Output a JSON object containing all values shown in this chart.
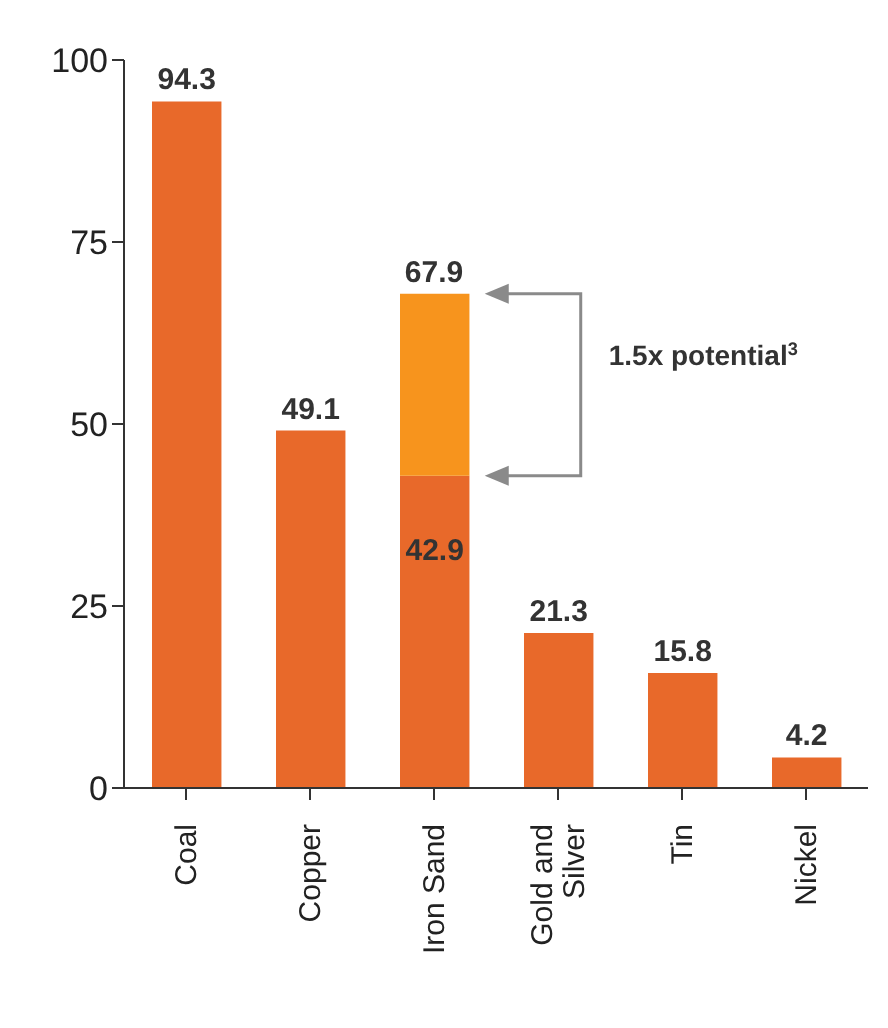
{
  "chart_data": {
    "type": "bar",
    "stacked": true,
    "categories": [
      "Coal",
      "Copper",
      "Iron Sand",
      "Gold and Silver",
      "Tin",
      "Nickel"
    ],
    "series": [
      {
        "color": "#e8692a",
        "values": [
          94.3,
          49.1,
          42.9,
          21.3,
          15.8,
          4.2
        ],
        "value_labels": [
          "94.3",
          "49.1",
          "42.9",
          "21.3",
          "15.8",
          "4.2"
        ]
      },
      {
        "color": "#f7941d",
        "values": [
          null,
          null,
          25.0,
          null,
          null,
          null
        ],
        "value_labels": [
          null,
          null,
          null,
          null,
          null,
          null
        ]
      }
    ],
    "totals": [
      null,
      null,
      "67.9",
      null,
      null,
      null
    ],
    "ylim": [
      0,
      100
    ],
    "yticks": [
      0,
      25,
      50,
      75,
      100
    ],
    "grid": false,
    "legend": false,
    "annotations": [
      "1.5x potential$^{3}$"
    ]
  }
}
